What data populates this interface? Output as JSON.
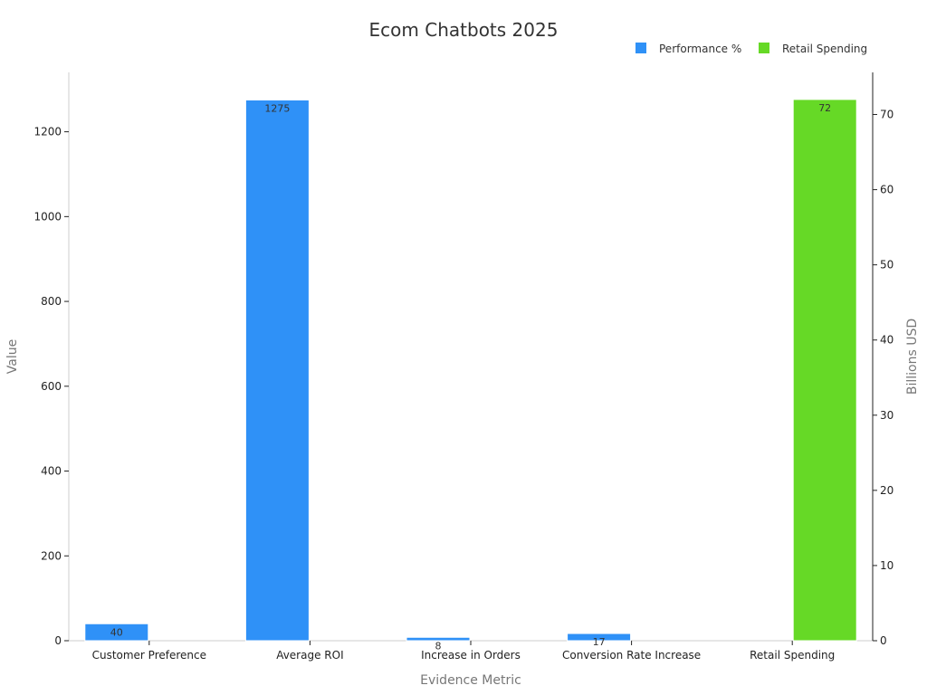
{
  "chart_data": {
    "type": "bar",
    "title": "Ecom Chatbots 2025",
    "xlabel": "Evidence Metric",
    "ylabel": "Value",
    "y2label": "Billions USD",
    "categories": [
      "Customer Preference",
      "Average ROI",
      "Increase in Orders",
      "Conversion Rate Increase",
      "Retail Spending"
    ],
    "ylim": [
      0,
      1340
    ],
    "y2lim": [
      0,
      75.6
    ],
    "yticks": [
      0,
      200,
      400,
      600,
      800,
      1000,
      1200
    ],
    "y2ticks": [
      0,
      10,
      20,
      30,
      40,
      50,
      60,
      70
    ],
    "legend_position": "top-right",
    "grid": false,
    "series": [
      {
        "name": "Performance %",
        "axis": "left",
        "color": "#2f91f7",
        "values": [
          40,
          1275,
          8,
          17,
          null
        ],
        "labels": [
          "40",
          "1275",
          "8",
          "17",
          ""
        ]
      },
      {
        "name": "Retail Spending",
        "axis": "right",
        "color": "#66d926",
        "values": [
          null,
          null,
          null,
          null,
          72
        ],
        "labels": [
          "",
          "",
          "",
          "",
          "72"
        ]
      }
    ]
  }
}
